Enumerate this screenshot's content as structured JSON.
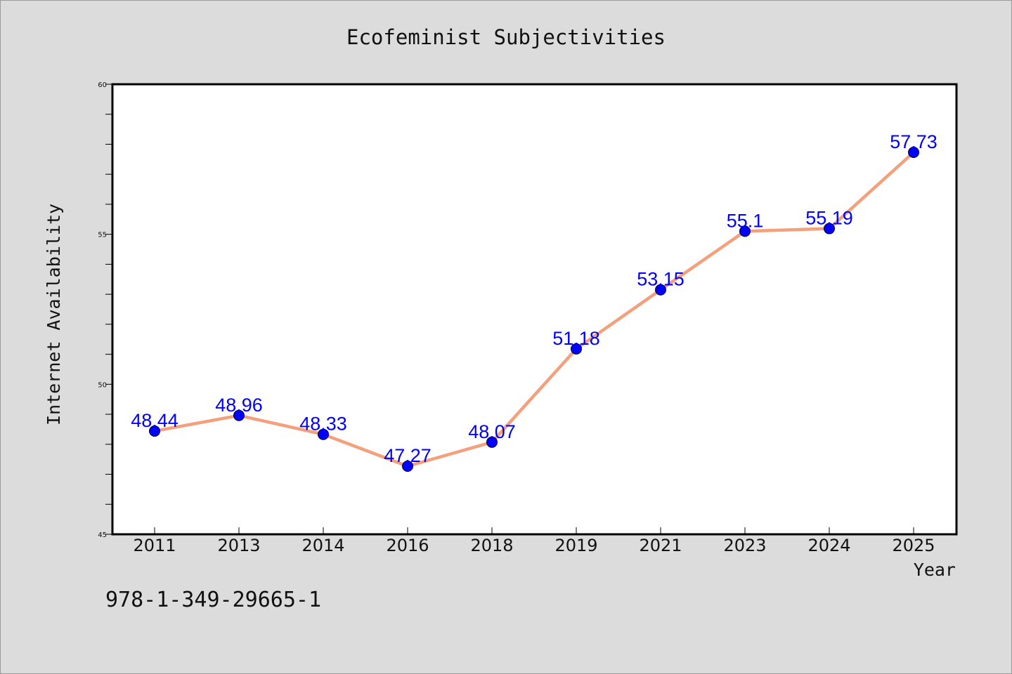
{
  "colors": {
    "background": "#dcdcdc",
    "plot_background": "#ffffff",
    "line": "#f4a07c",
    "marker": "#0000ff",
    "data_label": "#0000ff",
    "axis": "#000000"
  },
  "isbn_text": "978-1-349-29665-1",
  "chart_data": {
    "type": "line",
    "title": "Ecofeminist Subjectivities",
    "xlabel": "Year",
    "ylabel": "Internet Availability",
    "categories": [
      "2011",
      "2013",
      "2014",
      "2016",
      "2018",
      "2019",
      "2021",
      "2023",
      "2024",
      "2025"
    ],
    "series": [
      {
        "values": [
          48.44,
          48.96,
          48.33,
          47.27,
          48.07,
          51.18,
          53.15,
          55.1,
          55.19,
          57.73
        ],
        "labels": [
          "48.44",
          "48.96",
          "48.33",
          "47.27",
          "48.07",
          "51.18",
          "53.15",
          "55.1",
          "55.19",
          "57.73"
        ]
      }
    ],
    "ylim": [
      45,
      60
    ],
    "yticks": [
      "45",
      "50",
      "55",
      "60"
    ],
    "y_minor_step": 1,
    "grid": false,
    "legend": "none"
  }
}
